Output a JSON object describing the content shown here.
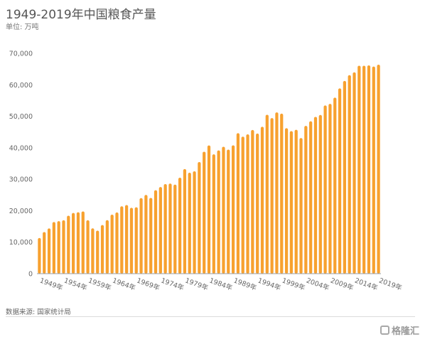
{
  "title": "1949-2019年中国粮食产量",
  "unit": "单位: 万吨",
  "source": "数据来源: 国家统计局",
  "watermark": "格隆汇",
  "colors": {
    "bar": "#F7A12F",
    "axis": "#999999",
    "text": "#666666"
  },
  "chart_data": {
    "type": "bar",
    "title": "1949-2019年中国粮食产量",
    "ylabel": "单位: 万吨",
    "xlabel": "",
    "ylim": [
      0,
      70000
    ],
    "yticks": [
      0,
      10000,
      20000,
      30000,
      40000,
      50000,
      60000,
      70000
    ],
    "ytick_labels": [
      "0",
      "10,000",
      "20,000",
      "30,000",
      "40,000",
      "50,000",
      "60,000",
      "70,000"
    ],
    "xtick_labels": [
      "1949年",
      "1954年",
      "1959年",
      "1964年",
      "1969年",
      "1974年",
      "1979年",
      "1984年",
      "1989年",
      "1994年",
      "1999年",
      "2004年",
      "2009年",
      "2014年",
      "2019年"
    ],
    "grid": false,
    "categories": [
      "1949",
      "1950",
      "1951",
      "1952",
      "1953",
      "1954",
      "1955",
      "1956",
      "1957",
      "1958",
      "1959",
      "1960",
      "1961",
      "1962",
      "1963",
      "1964",
      "1965",
      "1966",
      "1967",
      "1968",
      "1969",
      "1970",
      "1971",
      "1972",
      "1973",
      "1974",
      "1975",
      "1976",
      "1977",
      "1978",
      "1979",
      "1980",
      "1981",
      "1982",
      "1983",
      "1984",
      "1985",
      "1986",
      "1987",
      "1988",
      "1989",
      "1990",
      "1991",
      "1992",
      "1993",
      "1994",
      "1995",
      "1996",
      "1997",
      "1998",
      "1999",
      "2000",
      "2001",
      "2002",
      "2003",
      "2004",
      "2005",
      "2006",
      "2007",
      "2008",
      "2009",
      "2010",
      "2011",
      "2012",
      "2013",
      "2014",
      "2015",
      "2016",
      "2017",
      "2018",
      "2019"
    ],
    "values": [
      11318,
      13213,
      14369,
      16392,
      16683,
      16952,
      18394,
      19275,
      19505,
      19765,
      16968,
      14385,
      13650,
      15441,
      17000,
      18750,
      19453,
      21400,
      21782,
      20906,
      21097,
      23996,
      25014,
      24048,
      26494,
      27527,
      28452,
      28631,
      28273,
      30477,
      33212,
      32056,
      32502,
      35450,
      38728,
      40731,
      37911,
      39151,
      40298,
      39408,
      40755,
      44624,
      43529,
      44266,
      45649,
      44510,
      46662,
      50454,
      49417,
      51230,
      50839,
      46218,
      45264,
      45706,
      43070,
      46947,
      48402,
      49804,
      50414,
      53434,
      53941,
      55911,
      58849,
      61223,
      63048,
      63965,
      66060,
      66044,
      66161,
      65789,
      66384
    ]
  }
}
